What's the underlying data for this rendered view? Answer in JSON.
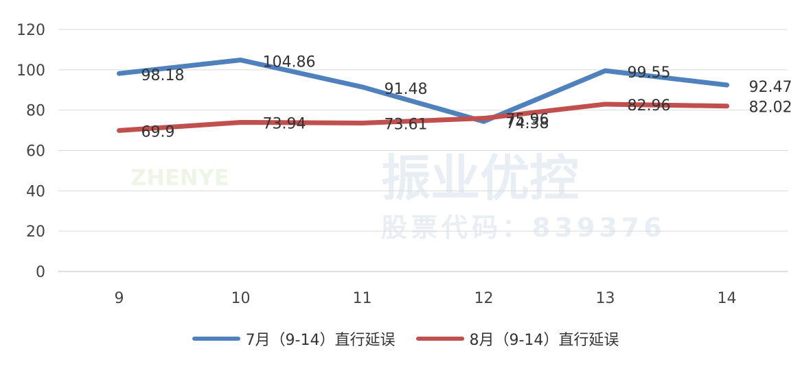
{
  "watermark": {
    "title": "振业优控",
    "stock_code": "股票代码：839376",
    "logo_text": "ZHENYE"
  },
  "chart_data": {
    "type": "line",
    "categories": [
      "9",
      "10",
      "11",
      "12",
      "13",
      "14"
    ],
    "ylim": [
      0,
      120
    ],
    "yticks": [
      0,
      20,
      40,
      60,
      80,
      100,
      120
    ],
    "grid": true,
    "legend_position": "bottom",
    "series": [
      {
        "name": "7月（9-14）直行延误",
        "color": "#4f81bd",
        "values": [
          98.18,
          104.86,
          91.48,
          74.38,
          99.55,
          92.47
        ],
        "labels": [
          "98.18",
          "104.86",
          "91.48",
          "74.38",
          "99.55",
          "92.47"
        ]
      },
      {
        "name": "8月（9-14）直行延误",
        "color": "#c0504d",
        "values": [
          69.9,
          73.94,
          73.61,
          75.96,
          82.96,
          82.02
        ],
        "labels": [
          "69.9",
          "73.94",
          "73.61",
          "75.96",
          "82.96",
          "82.02"
        ]
      }
    ]
  }
}
